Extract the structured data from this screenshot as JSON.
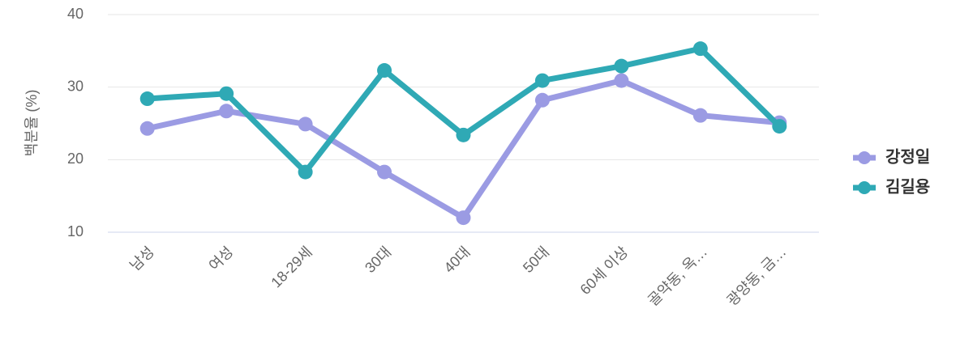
{
  "chart_data": {
    "type": "line",
    "y_label": "백분율 (%)",
    "categories": [
      "남성",
      "여성",
      "18-29세",
      "30대",
      "40대",
      "50대",
      "60세 이상",
      "골약동, 옥…",
      "광양동, 금…"
    ],
    "series": [
      {
        "name": "강정일",
        "color": "#9b9be3",
        "values": [
          24.3,
          26.7,
          24.9,
          18.3,
          12.0,
          28.2,
          30.9,
          26.1,
          25.1
        ]
      },
      {
        "name": "김길용",
        "color": "#2fa9b5",
        "values": [
          28.4,
          29.1,
          18.3,
          32.3,
          23.4,
          30.9,
          32.9,
          35.3,
          24.6
        ]
      }
    ],
    "ylim": [
      10,
      40
    ],
    "yticks": [
      10,
      20,
      30,
      40
    ],
    "grid": true,
    "legend": "right"
  }
}
